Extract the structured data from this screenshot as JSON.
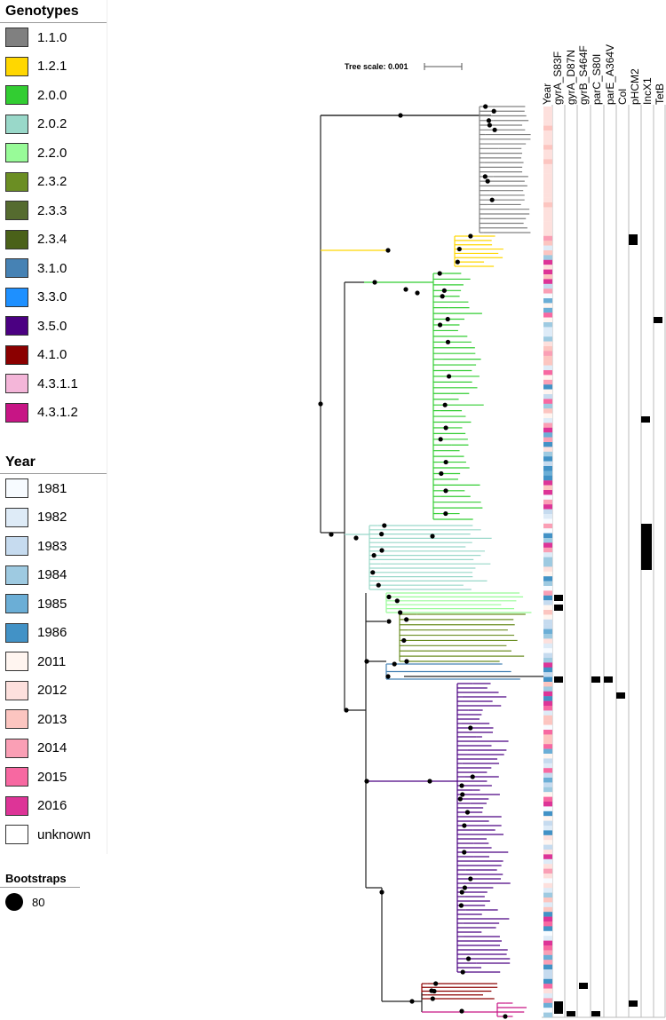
{
  "genotypes": {
    "title": "Genotypes",
    "items": [
      {
        "label": "1.1.0",
        "color": "#808080"
      },
      {
        "label": "1.2.1",
        "color": "#ffd700"
      },
      {
        "label": "2.0.0",
        "color": "#32cd32"
      },
      {
        "label": "2.0.2",
        "color": "#99d8c9"
      },
      {
        "label": "2.2.0",
        "color": "#98fb98"
      },
      {
        "label": "2.3.2",
        "color": "#6b8e23"
      },
      {
        "label": "2.3.3",
        "color": "#556b2f"
      },
      {
        "label": "2.3.4",
        "color": "#4a6119"
      },
      {
        "label": "3.1.0",
        "color": "#4682b4"
      },
      {
        "label": "3.3.0",
        "color": "#1e90ff"
      },
      {
        "label": "3.5.0",
        "color": "#4b0082"
      },
      {
        "label": "4.1.0",
        "color": "#8b0000"
      },
      {
        "label": "4.3.1.1",
        "color": "#f4b6d9"
      },
      {
        "label": "4.3.1.2",
        "color": "#c71585"
      }
    ]
  },
  "year": {
    "title": "Year",
    "items": [
      {
        "label": "1981",
        "color": "#f7fbff"
      },
      {
        "label": "1982",
        "color": "#deebf7"
      },
      {
        "label": "1983",
        "color": "#c6dbef"
      },
      {
        "label": "1984",
        "color": "#9ecae1"
      },
      {
        "label": "1985",
        "color": "#6baed6"
      },
      {
        "label": "1986",
        "color": "#4292c6"
      },
      {
        "label": "2011",
        "color": "#fff5f0"
      },
      {
        "label": "2012",
        "color": "#fde0dd"
      },
      {
        "label": "2013",
        "color": "#fcc5c0"
      },
      {
        "label": "2014",
        "color": "#fa9fb5"
      },
      {
        "label": "2015",
        "color": "#f768a1"
      },
      {
        "label": "2016",
        "color": "#dd3497"
      },
      {
        "label": "unknown",
        "color": "#ffffff"
      }
    ]
  },
  "bootstraps": {
    "title": "Bootstraps",
    "label": "80"
  },
  "tree_scale": {
    "label": "Tree scale: 0.001"
  },
  "columns": [
    "Year",
    "gyrA_S83F",
    "gyrA_D87N",
    "gyrB_S464F",
    "parC_S80I",
    "parE_A364V",
    "Col",
    "pHCM2",
    "IncX1",
    "TetB"
  ]
}
